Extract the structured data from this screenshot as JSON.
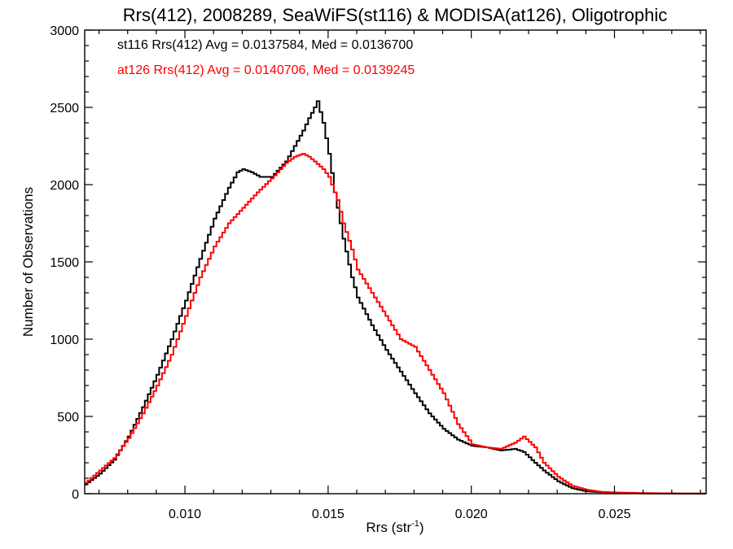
{
  "chart_data": {
    "type": "line",
    "title": "Rrs(412), 2008289, SeaWiFS(st116) & MODISA(at126), Oligotrophic",
    "xlabel": "Rrs (str",
    "xlabel_sup": "-1",
    "xlabel_close": ")",
    "ylabel": "Number of Observations",
    "xlim": [
      0.0065,
      0.0282
    ],
    "ylim": [
      0,
      3000
    ],
    "x_ticks": [
      {
        "value": 0.01,
        "label": "0.010"
      },
      {
        "value": 0.015,
        "label": "0.015"
      },
      {
        "value": 0.02,
        "label": "0.020"
      },
      {
        "value": 0.025,
        "label": "0.025"
      }
    ],
    "y_ticks": [
      {
        "value": 0,
        "label": "0"
      },
      {
        "value": 500,
        "label": "500"
      },
      {
        "value": 1000,
        "label": "1000"
      },
      {
        "value": 1500,
        "label": "1500"
      },
      {
        "value": 2000,
        "label": "2000"
      },
      {
        "value": 2500,
        "label": "2500"
      },
      {
        "value": 3000,
        "label": "3000"
      }
    ],
    "grid": false,
    "legend_position": "top-left",
    "series": [
      {
        "name": "st116",
        "legend_text": "st116 Rrs(412) Avg = 0.0137584, Med = 0.0136700",
        "color": "#000000",
        "x": [
          0.0065,
          0.007,
          0.0075,
          0.008,
          0.0085,
          0.009,
          0.0095,
          0.01,
          0.0105,
          0.011,
          0.0115,
          0.0118,
          0.012,
          0.0123,
          0.0126,
          0.013,
          0.0135,
          0.0138,
          0.0141,
          0.0143,
          0.0145,
          0.0146,
          0.0148,
          0.015,
          0.0152,
          0.0155,
          0.0158,
          0.016,
          0.0165,
          0.017,
          0.0175,
          0.018,
          0.0185,
          0.019,
          0.0195,
          0.02,
          0.0205,
          0.021,
          0.0215,
          0.0218,
          0.0222,
          0.0225,
          0.023,
          0.0235,
          0.024,
          0.025,
          0.026,
          0.027,
          0.0282
        ],
        "y": [
          60,
          130,
          220,
          370,
          560,
          770,
          1000,
          1250,
          1520,
          1780,
          1980,
          2080,
          2100,
          2080,
          2050,
          2050,
          2150,
          2250,
          2350,
          2430,
          2500,
          2540,
          2400,
          2200,
          1950,
          1650,
          1400,
          1270,
          1090,
          930,
          790,
          650,
          520,
          420,
          350,
          310,
          300,
          280,
          290,
          270,
          200,
          150,
          80,
          35,
          15,
          5,
          2,
          1,
          0
        ]
      },
      {
        "name": "at126",
        "legend_text": "at126 Rrs(412) Avg = 0.0140706, Med = 0.0139245",
        "color": "#ff0000",
        "x": [
          0.0065,
          0.007,
          0.0075,
          0.008,
          0.0085,
          0.009,
          0.0095,
          0.01,
          0.0105,
          0.011,
          0.0115,
          0.012,
          0.0125,
          0.013,
          0.0135,
          0.0138,
          0.0141,
          0.0143,
          0.0145,
          0.0148,
          0.015,
          0.0153,
          0.0155,
          0.0158,
          0.016,
          0.0165,
          0.017,
          0.0175,
          0.018,
          0.0185,
          0.019,
          0.0195,
          0.02,
          0.0205,
          0.021,
          0.0215,
          0.0218,
          0.0222,
          0.0225,
          0.023,
          0.0235,
          0.024,
          0.0245,
          0.025,
          0.026,
          0.027,
          0.0282
        ],
        "y": [
          70,
          150,
          230,
          360,
          520,
          700,
          900,
          1150,
          1400,
          1600,
          1750,
          1850,
          1950,
          2040,
          2140,
          2180,
          2200,
          2180,
          2150,
          2100,
          2050,
          1900,
          1750,
          1580,
          1450,
          1300,
          1150,
          1000,
          950,
          800,
          650,
          450,
          320,
          300,
          290,
          330,
          370,
          300,
          200,
          110,
          50,
          25,
          12,
          8,
          4,
          2,
          1
        ]
      }
    ]
  }
}
